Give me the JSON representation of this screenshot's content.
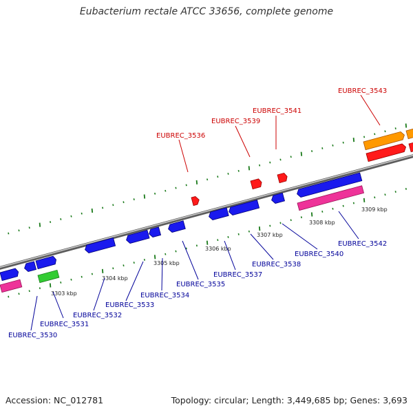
{
  "title": "Eubacterium rectale ATCC 33656, complete genome",
  "footer": {
    "accession": "Accession: NC_012781",
    "stats": "Topology: circular; Length: 3,449,685 bp; Genes: 3,693"
  },
  "colors": {
    "forward_gene": "#ff1a1a",
    "reverse_gene": "#1a1aee",
    "forward_label": "#cc0000",
    "reverse_label": "#000099",
    "orange_feature": "#ff9900",
    "pink_feature": "#ee3399",
    "green_feature": "#33cc33",
    "backbone": "#888888",
    "ticks": "#1a7a1a"
  },
  "scale_labels": [
    "3303 kbp",
    "3304 kbp",
    "3305 kbp",
    "3306 kbp",
    "3307 kbp",
    "3308 kbp",
    "3309 kbp"
  ],
  "gene_labels_top": [
    "EUBREC_3536",
    "EUBREC_3539",
    "EUBREC_3541",
    "EUBREC_3543"
  ],
  "gene_labels_bottom": [
    "EUBREC_3530",
    "EUBREC_3531",
    "EUBREC_3532",
    "EUBREC_3533",
    "EUBREC_3534",
    "EUBREC_3535",
    "EUBREC_3537",
    "EUBREC_3538",
    "EUBREC_3540",
    "EUBREC_3542"
  ]
}
